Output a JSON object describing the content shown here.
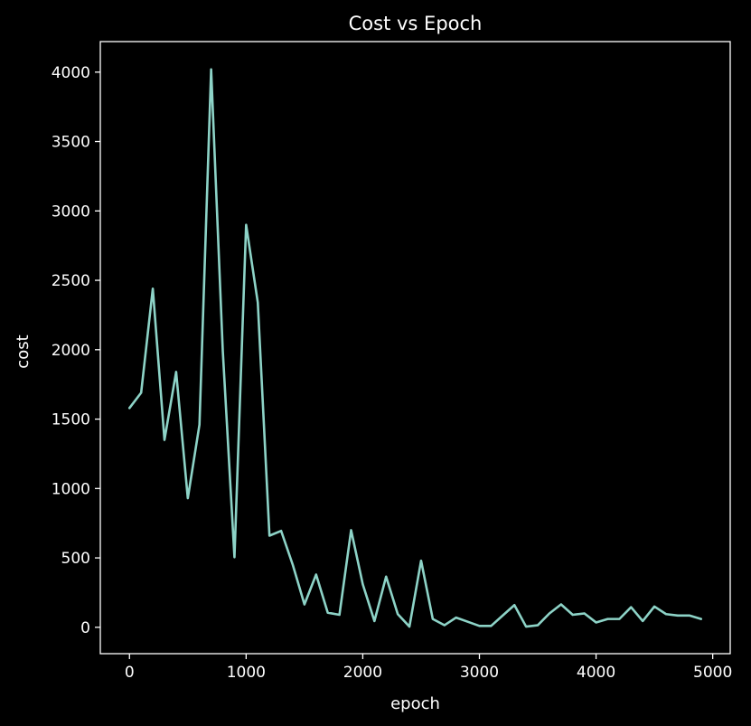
{
  "chart_data": {
    "type": "line",
    "title": "Cost vs Epoch",
    "xlabel": "epoch",
    "ylabel": "cost",
    "xlim": [
      -250,
      5150
    ],
    "ylim": [
      -190,
      4220
    ],
    "x_ticks": [
      0,
      1000,
      2000,
      3000,
      4000,
      5000
    ],
    "y_ticks": [
      0,
      500,
      1000,
      1500,
      2000,
      2500,
      3000,
      3500,
      4000
    ],
    "grid": false,
    "legend": "none",
    "colors": {
      "background": "#000000",
      "foreground": "#ffffff",
      "line": "#8dd3c7"
    },
    "series": [
      {
        "x": [
          0,
          100,
          200,
          300,
          400,
          500,
          600,
          700,
          800,
          900,
          1000,
          1100,
          1200,
          1300,
          1400,
          1500,
          1600,
          1700,
          1800,
          1900,
          2000,
          2100,
          2200,
          2300,
          2400,
          2500,
          2600,
          2700,
          2800,
          2900,
          3000,
          3100,
          3200,
          3300,
          3400,
          3500,
          3600,
          3700,
          3800,
          3900,
          4000,
          4100,
          4200,
          4300,
          4400,
          4500,
          4600,
          4700,
          4800,
          4900
        ],
        "values": [
          1580,
          1690,
          2440,
          1350,
          1840,
          930,
          1460,
          4020,
          1990,
          505,
          2900,
          2340,
          660,
          695,
          450,
          165,
          380,
          105,
          90,
          700,
          310,
          45,
          365,
          95,
          5,
          480,
          60,
          15,
          70,
          40,
          10,
          10,
          85,
          160,
          5,
          15,
          100,
          165,
          90,
          100,
          35,
          60,
          60,
          145,
          45,
          150,
          95,
          85,
          85,
          60
        ]
      }
    ]
  }
}
